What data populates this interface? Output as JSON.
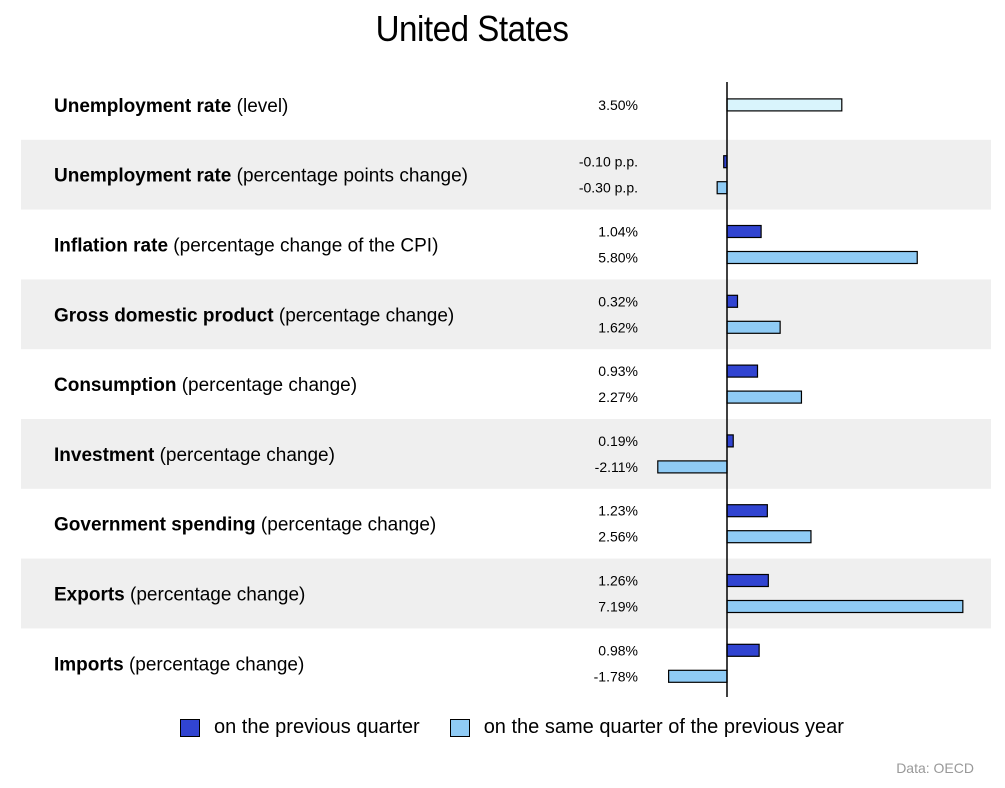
{
  "title": "United States",
  "source": "Data: OECD",
  "colors": {
    "previous_quarter": "#3144d1",
    "same_quarter_prev_year": "#8fcbf5",
    "unemployment_level": "#d9f4fc",
    "band": "#efefef"
  },
  "legend": {
    "previous_quarter": "on the previous quarter",
    "same_quarter_prev_year": "on the same quarter of the previous year"
  },
  "chart_data": {
    "type": "bar",
    "orientation": "horizontal",
    "title": "United States",
    "rows": [
      {
        "bold": "Unemployment rate",
        "rest": " (level)",
        "bars": [
          {
            "series": "level",
            "value": 3.5,
            "label": "3.50%"
          }
        ]
      },
      {
        "bold": "Unemployment rate",
        "rest": " (percentage points change)",
        "bars": [
          {
            "series": "previous_quarter",
            "value": -0.1,
            "label": "-0.10 p.p."
          },
          {
            "series": "same_quarter_prev_year",
            "value": -0.3,
            "label": "-0.30 p.p."
          }
        ]
      },
      {
        "bold": "Inflation rate",
        "rest": " (percentage change of the CPI)",
        "bars": [
          {
            "series": "previous_quarter",
            "value": 1.04,
            "label": "1.04%"
          },
          {
            "series": "same_quarter_prev_year",
            "value": 5.8,
            "label": "5.80%"
          }
        ]
      },
      {
        "bold": "Gross domestic product",
        "rest": " (percentage change)",
        "bars": [
          {
            "series": "previous_quarter",
            "value": 0.32,
            "label": "0.32%"
          },
          {
            "series": "same_quarter_prev_year",
            "value": 1.62,
            "label": "1.62%"
          }
        ]
      },
      {
        "bold": "Consumption",
        "rest": " (percentage change)",
        "bars": [
          {
            "series": "previous_quarter",
            "value": 0.93,
            "label": "0.93%"
          },
          {
            "series": "same_quarter_prev_year",
            "value": 2.27,
            "label": "2.27%"
          }
        ]
      },
      {
        "bold": "Investment",
        "rest": " (percentage change)",
        "bars": [
          {
            "series": "previous_quarter",
            "value": 0.19,
            "label": "0.19%"
          },
          {
            "series": "same_quarter_prev_year",
            "value": -2.11,
            "label": "-2.11%"
          }
        ]
      },
      {
        "bold": "Government spending",
        "rest": " (percentage change)",
        "bars": [
          {
            "series": "previous_quarter",
            "value": 1.23,
            "label": "1.23%"
          },
          {
            "series": "same_quarter_prev_year",
            "value": 2.56,
            "label": "2.56%"
          }
        ]
      },
      {
        "bold": "Exports",
        "rest": " (percentage change)",
        "bars": [
          {
            "series": "previous_quarter",
            "value": 1.26,
            "label": "1.26%"
          },
          {
            "series": "same_quarter_prev_year",
            "value": 7.19,
            "label": "7.19%"
          }
        ]
      },
      {
        "bold": "Imports",
        "rest": " (percentage change)",
        "bars": [
          {
            "series": "previous_quarter",
            "value": 0.98,
            "label": "0.98%"
          },
          {
            "series": "same_quarter_prev_year",
            "value": -1.78,
            "label": "-1.78%"
          }
        ]
      }
    ]
  }
}
